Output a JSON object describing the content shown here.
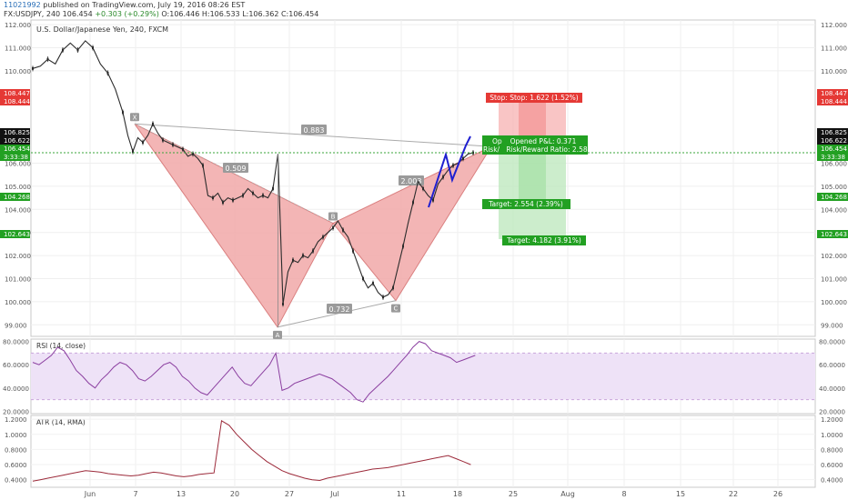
{
  "header": {
    "user_id": "11021992",
    "published": "published on TradingView.com, July 19, 2016 08:26 EST",
    "symbol": "FX:USDJPY, 240",
    "last": "106.454",
    "change": "+0.303 (+0.29%)",
    "ohlc": "O:106.446 H:106.533 L:106.362 C:106.454"
  },
  "colors": {
    "pattern_fill": "#f2a9a9",
    "pattern_stroke": "#d46a6a",
    "candle": "#2b2b2b",
    "stop_zone": "#f7b1b1",
    "target_zone": "#bfe8bf",
    "rsi_line": "#8b3fa0",
    "rsi_band": "#eee2f7",
    "atr_line": "#9c2a3a",
    "projection_line": "#1f1fd0",
    "dashed_price": "#3aa53a"
  },
  "chart_data": [
    {
      "type": "line",
      "title": "U.S. Dollar/Japanese Yen, 240, FXCM",
      "ylim": [
        98.5,
        112.2
      ],
      "x_ticks": [
        "Jun",
        "7",
        "13",
        "20",
        "27",
        "Jul",
        "11",
        "18",
        "25",
        "Aug",
        "8",
        "15",
        "22",
        "26"
      ],
      "y_ticks": [
        "112.000",
        "111.000",
        "110.000",
        "106.000",
        "105.000",
        "104.000",
        "103.000",
        "102.000",
        "101.000",
        "100.000",
        "99.000"
      ],
      "harmonic_pattern": {
        "points": [
          {
            "label": "X",
            "price": 107.7
          },
          {
            "label": "A",
            "price": 98.9
          },
          {
            "label": "B",
            "price": 103.4
          },
          {
            "label": "C",
            "price": 100.05
          },
          {
            "label": "D",
            "price": 106.72
          }
        ],
        "ratios": [
          "0.883",
          "0.509",
          "2.003",
          "0.732"
        ]
      },
      "trade_box": {
        "stop_text": "Stop: Stop: 1.622 (1.52%)",
        "open_text": "Op",
        "risk_text": "Risk/",
        "pnl_text": "Opened P&L: 0.371",
        "rr_text": "Risk/Reward Ratio: 2.58",
        "target1_text": "Target: 2.554 (2.39%)",
        "target2_text": "Target: 4.182 (3.91%)"
      },
      "price_tags": [
        {
          "text": "108.447",
          "kind": "red"
        },
        {
          "text": "108.444",
          "kind": "red"
        },
        {
          "text": "106.825",
          "kind": "black"
        },
        {
          "text": "106.622",
          "kind": "black"
        },
        {
          "text": "106.454",
          "kind": "green"
        },
        {
          "text": "3:33:38",
          "kind": "green"
        },
        {
          "text": "104.268",
          "kind": "green"
        },
        {
          "text": "102.643",
          "kind": "green"
        }
      ],
      "price_series": [
        [
          0,
          110.1
        ],
        [
          3,
          110.2
        ],
        [
          6,
          110.5
        ],
        [
          9,
          110.3
        ],
        [
          12,
          110.9
        ],
        [
          15,
          111.2
        ],
        [
          18,
          110.9
        ],
        [
          21,
          111.3
        ],
        [
          24,
          111.0
        ],
        [
          27,
          110.3
        ],
        [
          30,
          109.9
        ],
        [
          33,
          109.2
        ],
        [
          36,
          108.2
        ],
        [
          38,
          107.2
        ],
        [
          40,
          106.5
        ],
        [
          42,
          107.1
        ],
        [
          44,
          106.9
        ],
        [
          46,
          107.2
        ],
        [
          48,
          107.7
        ],
        [
          50,
          107.3
        ],
        [
          52,
          107.0
        ],
        [
          54,
          106.9
        ],
        [
          56,
          106.8
        ],
        [
          58,
          106.7
        ],
        [
          60,
          106.6
        ],
        [
          62,
          106.3
        ],
        [
          64,
          106.4
        ],
        [
          66,
          106.2
        ],
        [
          68,
          105.9
        ],
        [
          70,
          104.6
        ],
        [
          72,
          104.5
        ],
        [
          74,
          104.7
        ],
        [
          76,
          104.3
        ],
        [
          78,
          104.5
        ],
        [
          80,
          104.4
        ],
        [
          82,
          104.5
        ],
        [
          84,
          104.6
        ],
        [
          86,
          104.9
        ],
        [
          88,
          104.7
        ],
        [
          90,
          104.5
        ],
        [
          92,
          104.6
        ],
        [
          94,
          104.5
        ],
        [
          96,
          104.9
        ],
        [
          98,
          106.4
        ],
        [
          100,
          99.9
        ],
        [
          102,
          101.3
        ],
        [
          104,
          101.8
        ],
        [
          106,
          101.7
        ],
        [
          108,
          102.0
        ],
        [
          110,
          101.9
        ],
        [
          112,
          102.2
        ],
        [
          114,
          102.6
        ],
        [
          116,
          102.8
        ],
        [
          118,
          103.0
        ],
        [
          120,
          103.2
        ],
        [
          122,
          103.5
        ],
        [
          124,
          103.1
        ],
        [
          126,
          102.8
        ],
        [
          128,
          102.2
        ],
        [
          130,
          101.6
        ],
        [
          132,
          101.0
        ],
        [
          134,
          100.6
        ],
        [
          136,
          100.8
        ],
        [
          138,
          100.4
        ],
        [
          140,
          100.2
        ],
        [
          142,
          100.3
        ],
        [
          144,
          100.6
        ],
        [
          146,
          101.5
        ],
        [
          148,
          102.4
        ],
        [
          150,
          103.4
        ],
        [
          152,
          104.3
        ],
        [
          154,
          105.2
        ],
        [
          156,
          104.9
        ],
        [
          158,
          104.6
        ],
        [
          160,
          104.4
        ],
        [
          162,
          105.1
        ],
        [
          164,
          105.4
        ],
        [
          166,
          105.7
        ],
        [
          168,
          105.9
        ],
        [
          170,
          106.0
        ],
        [
          172,
          106.2
        ],
        [
          174,
          106.4
        ],
        [
          176,
          106.45
        ]
      ]
    },
    {
      "type": "line",
      "title": "RSI (14, close)",
      "ylim": [
        18,
        82
      ],
      "y_ticks": [
        "80.0000",
        "60.0000",
        "40.0000",
        "20.0000"
      ],
      "band": [
        30,
        70
      ],
      "values": [
        62,
        60,
        64,
        68,
        75,
        72,
        64,
        55,
        50,
        44,
        40,
        47,
        52,
        58,
        62,
        60,
        55,
        48,
        46,
        50,
        55,
        60,
        62,
        58,
        50,
        46,
        40,
        36,
        34,
        40,
        46,
        52,
        58,
        50,
        44,
        42,
        48,
        54,
        60,
        70,
        38,
        40,
        44,
        46,
        48,
        50,
        52,
        50,
        48,
        44,
        40,
        36,
        30,
        28,
        35,
        40,
        45,
        50,
        56,
        62,
        68,
        75,
        80,
        78,
        72,
        70,
        68,
        66,
        62,
        64,
        66,
        68
      ]
    },
    {
      "type": "line",
      "title": "ATR (14, RMA)",
      "ylim": [
        0.3,
        1.25
      ],
      "y_ticks": [
        "1.2000",
        "1.0000",
        "0.8000",
        "0.6000",
        "0.4000"
      ],
      "values": [
        0.38,
        0.4,
        0.42,
        0.44,
        0.46,
        0.48,
        0.5,
        0.52,
        0.51,
        0.5,
        0.48,
        0.47,
        0.46,
        0.45,
        0.46,
        0.48,
        0.5,
        0.49,
        0.47,
        0.45,
        0.44,
        0.45,
        0.47,
        0.48,
        0.49,
        1.18,
        1.12,
        1.0,
        0.9,
        0.8,
        0.72,
        0.64,
        0.58,
        0.52,
        0.48,
        0.45,
        0.42,
        0.4,
        0.39,
        0.42,
        0.44,
        0.46,
        0.48,
        0.5,
        0.52,
        0.54,
        0.55,
        0.56,
        0.58,
        0.6,
        0.62,
        0.64,
        0.66,
        0.68,
        0.7,
        0.72,
        0.68,
        0.64,
        0.6
      ]
    }
  ]
}
